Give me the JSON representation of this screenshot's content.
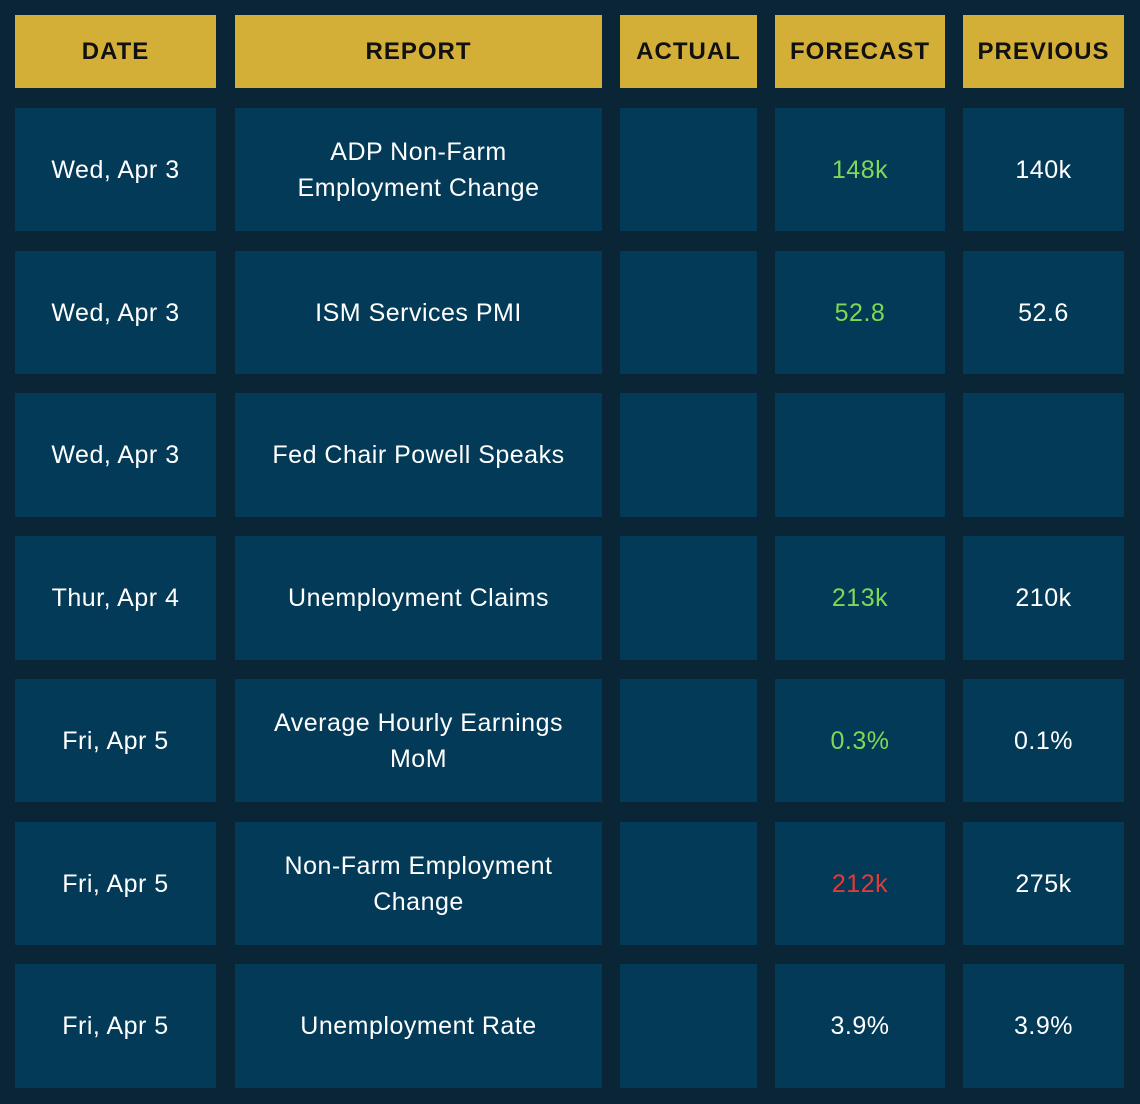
{
  "table": {
    "headers": [
      "DATE",
      "REPORT",
      "ACTUAL",
      "FORECAST",
      "PREVIOUS"
    ],
    "rows": [
      {
        "date": "Wed, Apr 3",
        "report": "ADP Non-Farm Employment Change",
        "forecast": "148k",
        "forecast_color": "#7ed957",
        "previous": "140k"
      },
      {
        "date": "Wed, Apr 3",
        "report": "ISM Services PMI",
        "forecast": "52.8",
        "forecast_color": "#7ed957",
        "previous": "52.6"
      },
      {
        "date": "Wed, Apr 3",
        "report": "Fed Chair Powell Speaks"
      },
      {
        "date": "Thur, Apr 4",
        "report": "Unemployment Claims",
        "forecast": "213k",
        "forecast_color": "#7ed957",
        "previous": "210k"
      },
      {
        "date": "Fri, Apr 5",
        "report": "Average Hourly Earnings MoM",
        "forecast": "0.3%",
        "forecast_color": "#7ed957",
        "previous": "0.1%"
      },
      {
        "date": "Fri, Apr 5",
        "report": "Non-Farm Employment Change",
        "forecast": "212k",
        "forecast_color": "#e53935",
        "previous": "275k"
      },
      {
        "date": "Fri, Apr 5",
        "report": "Unemployment Rate",
        "forecast": "3.9%",
        "forecast_color": "#ffffff",
        "previous": "3.9%"
      }
    ]
  }
}
